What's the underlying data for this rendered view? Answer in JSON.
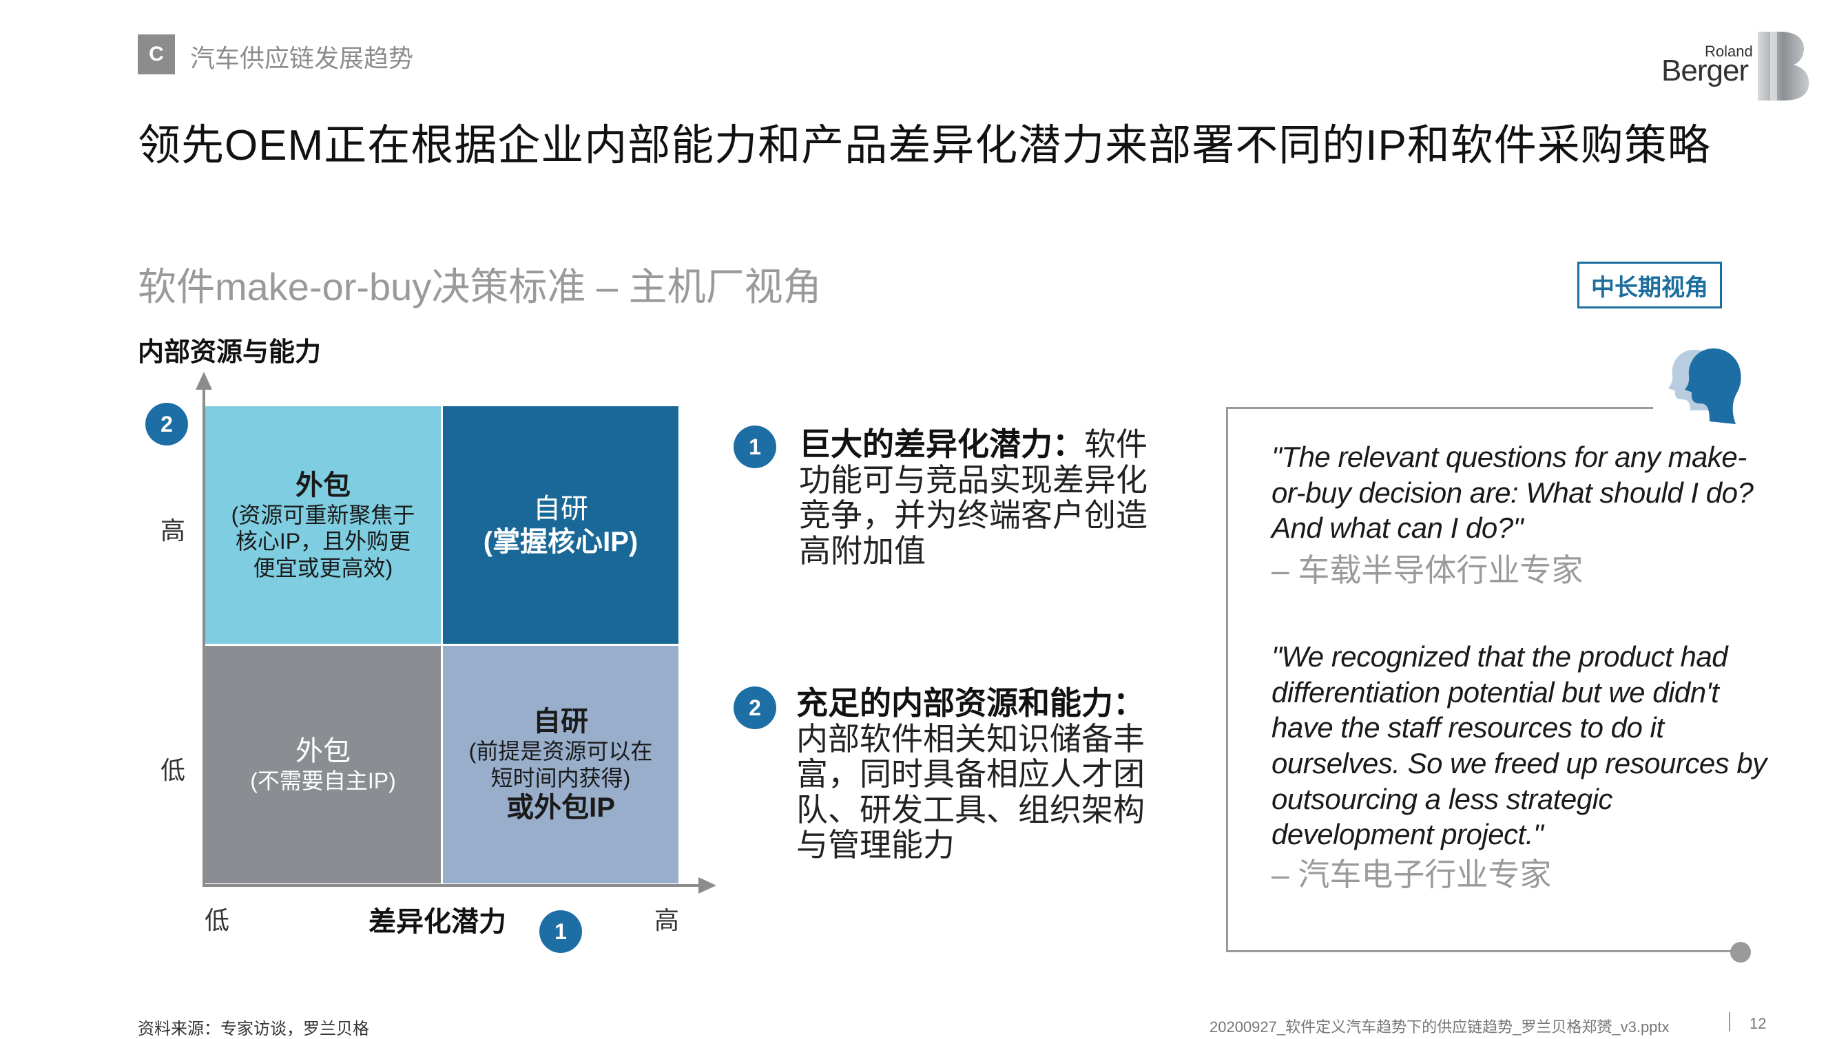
{
  "section": {
    "letter": "C",
    "label": "汽车供应链发展趋势"
  },
  "logo": {
    "line1": "Roland",
    "line2": "Berger"
  },
  "title": "领先OEM正在根据企业内部能力和产品差异化潜力来部署不同的IP和软件采购策略",
  "subtitle": "软件make-or-buy决策标准 – 主机厂视角",
  "badge": "中长期视角",
  "matrix": {
    "y_axis_title": "内部资源与能力",
    "y_axis_marker": "2",
    "y_high": "高",
    "y_low": "低",
    "x_axis_title": "差异化潜力",
    "x_axis_marker": "1",
    "x_low": "低",
    "x_high": "高",
    "top_left": {
      "title": "外包",
      "lines": [
        "(资源可重新聚焦于",
        "核心IP，且外购更",
        "便宜或更高效)"
      ]
    },
    "top_right": {
      "title": "自研",
      "sub": "(掌握核心IP)"
    },
    "bottom_left": {
      "title": "外包",
      "sub": "(不需要自主IP)"
    },
    "bottom_right": {
      "title": "自研",
      "lines": [
        "(前提是资源可以在",
        "短时间内获得)"
      ],
      "tail": "或外包IP"
    }
  },
  "points": [
    {
      "num": "1",
      "head": "巨大的差异化潜力：",
      "text": "软件功能可与竞品实现差异化竞争，并为终端客户创造高附加值"
    },
    {
      "num": "2",
      "head": "充足的内部资源和能力：",
      "text": "内部软件相关知识储备丰富，同时具备相应人才团队、研发工具、组织架构与管理能力"
    }
  ],
  "quotes": [
    {
      "text": "\"The relevant questions for any make-or-buy decision are: What should I do? And what can I do?\"",
      "attribution": "– 车载半导体行业专家"
    },
    {
      "text": "\"We recognized that the product had differentiation potential but we didn't have the staff resources to do it ourselves. So we freed up resources by outsourcing a less strategic development project.\"",
      "attribution": "– 汽车电子行业专家"
    }
  ],
  "footer": {
    "source": "资料来源：专家访谈，罗兰贝格",
    "file": "20200927_软件定义汽车趋势下的供应链趋势_罗兰贝格郑赟_v3.pptx",
    "page": "12"
  },
  "colors": {
    "accent": "#1c6ea4",
    "cell_top_left": "#7fcde0",
    "cell_top_right": "#1a6897",
    "cell_bottom_left": "#8a8d92",
    "cell_bottom_right": "#98aecb",
    "gray_text": "#9a9a9a"
  }
}
